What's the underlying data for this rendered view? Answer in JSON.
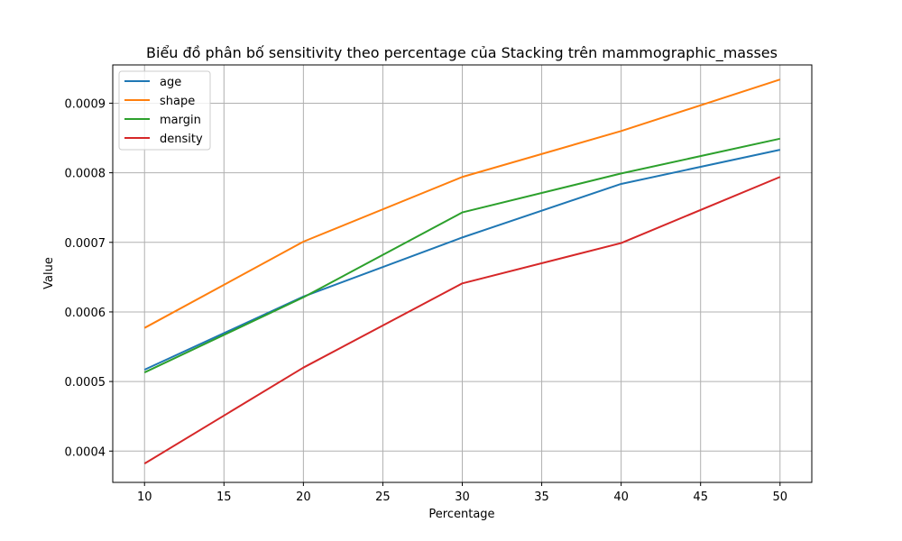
{
  "chart_data": {
    "type": "line",
    "title": "Biểu đồ phân bố sensitivity theo percentage của Stacking trên mammographic_masses",
    "xlabel": "Percentage",
    "ylabel": "Value",
    "x": [
      10,
      20,
      30,
      40,
      50
    ],
    "xlim": [
      8,
      52
    ],
    "ylim": [
      0.000355,
      0.000955
    ],
    "xticks": [
      10,
      15,
      20,
      25,
      30,
      35,
      40,
      45,
      50
    ],
    "xtick_labels": [
      "10",
      "15",
      "20",
      "25",
      "30",
      "35",
      "40",
      "45",
      "50"
    ],
    "yticks": [
      0.0004,
      0.0005,
      0.0006,
      0.0007,
      0.0008,
      0.0009
    ],
    "ytick_labels": [
      "0.0004",
      "0.0005",
      "0.0006",
      "0.0007",
      "0.0008",
      "0.0009"
    ],
    "grid": true,
    "legend_position": "upper left",
    "series": [
      {
        "name": "age",
        "color": "#1f77b4",
        "values": [
          0.000517,
          0.000622,
          0.000707,
          0.000784,
          0.000833
        ]
      },
      {
        "name": "shape",
        "color": "#ff7f0e",
        "values": [
          0.000577,
          0.000701,
          0.000794,
          0.00086,
          0.000934
        ]
      },
      {
        "name": "margin",
        "color": "#2ca02c",
        "values": [
          0.000513,
          0.000621,
          0.000743,
          0.000799,
          0.000849
        ]
      },
      {
        "name": "density",
        "color": "#d62728",
        "values": [
          0.000382,
          0.00052,
          0.000641,
          0.000699,
          0.000794
        ]
      }
    ]
  }
}
